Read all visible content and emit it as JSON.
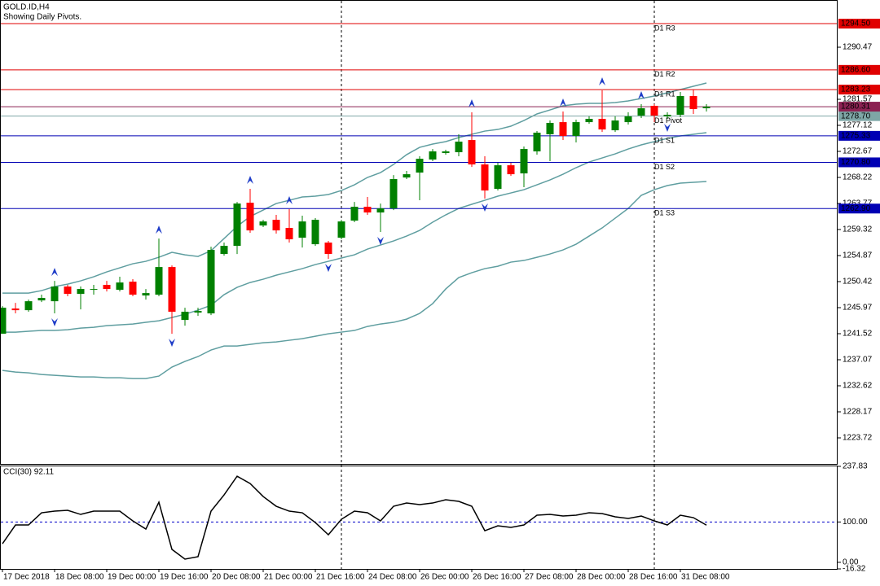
{
  "chart_data": [
    {
      "type": "candlestick",
      "title": "GOLD.ID,H4",
      "subtitle": "Showing Daily Pivots.",
      "categories": [
        "17 Dec 2018",
        null,
        null,
        null,
        "18 Dec 08:00",
        null,
        null,
        null,
        "19 Dec 00:00",
        null,
        null,
        null,
        "19 Dec 16:00",
        null,
        null,
        null,
        "20 Dec 08:00",
        null,
        null,
        null,
        "21 Dec 00:00",
        null,
        null,
        null,
        "21 Dec 16:00",
        null,
        null,
        null,
        "24 Dec 08:00",
        null,
        null,
        null,
        "26 Dec 00:00",
        null,
        null,
        null,
        "26 Dec 16:00",
        null,
        null,
        null,
        "27 Dec 08:00",
        null,
        null,
        null,
        "28 Dec 00:00",
        null,
        null,
        null,
        "28 Dec 16:00",
        null,
        null,
        null,
        "31 Dec 08:00",
        null,
        null
      ],
      "open": [
        1241.51,
        1245.82,
        1245.54,
        1247.21,
        1247.07,
        1249.58,
        1248.32,
        1249.02,
        1249.86,
        1249.02,
        1250.41,
        1248.05,
        1248.19,
        1252.91,
        1243.87,
        1245.13,
        1244.99,
        1255.14,
        1256.53,
        1263.9,
        1260.01,
        1260.98,
        1259.59,
        1257.92,
        1256.81,
        1257.09,
        1257.92,
        1260.84,
        1263.21,
        1262.23,
        1262.93,
        1268.21,
        1269.05,
        1271.28,
        1272.39,
        1272.53,
        1274.61,
        1270.44,
        1266.27,
        1270.3,
        1268.91,
        1272.67,
        1275.59,
        1277.67,
        1275.31,
        1277.67,
        1278.23,
        1276.28,
        1277.67,
        1278.79,
        1280.46,
        1278.65,
        1278.93,
        1282.13,
        1280.04
      ],
      "high": [
        1246.24,
        1246.79,
        1247.35,
        1248.19,
        1250.55,
        1249.86,
        1249.58,
        1249.86,
        1250.55,
        1251.25,
        1250.83,
        1249.16,
        1257.78,
        1253.19,
        1245.96,
        1245.96,
        1256.39,
        1257.09,
        1264.04,
        1266.27,
        1260.98,
        1261.82,
        1262.79,
        1261.68,
        1261.26,
        1257.37,
        1260.98,
        1264.04,
        1264.88,
        1263.76,
        1268.63,
        1269.33,
        1271.83,
        1273.08,
        1272.95,
        1275.59,
        1279.34,
        1271.83,
        1270.72,
        1270.72,
        1273.5,
        1276.14,
        1277.95,
        1279.48,
        1278.09,
        1278.65,
        1283.1,
        1278.65,
        1279.34,
        1280.73,
        1280.73,
        1279.34,
        1282.82,
        1283.24,
        1280.73
      ],
      "low": [
        1241.51,
        1244.99,
        1245.27,
        1246.93,
        1244.99,
        1247.91,
        1245.68,
        1248.19,
        1248.74,
        1248.74,
        1247.91,
        1247.35,
        1247.91,
        1241.51,
        1242.9,
        1244.57,
        1244.71,
        1254.86,
        1255.14,
        1258.76,
        1259.73,
        1258.62,
        1257.09,
        1256.25,
        1256.53,
        1254.3,
        1257.65,
        1260.57,
        1261.82,
        1258.9,
        1262.65,
        1267.94,
        1264.32,
        1271.0,
        1272.11,
        1271.83,
        1270.02,
        1264.6,
        1265.99,
        1268.49,
        1266.55,
        1272.11,
        1271.0,
        1274.61,
        1274.2,
        1277.4,
        1276.0,
        1276.0,
        1277.26,
        1278.37,
        1277.67,
        1278.23,
        1278.51,
        1279.07,
        1279.48
      ],
      "close": [
        1245.96,
        1245.54,
        1247.07,
        1247.63,
        1249.58,
        1248.32,
        1249.16,
        1249.16,
        1249.16,
        1250.27,
        1248.19,
        1248.46,
        1252.91,
        1245.27,
        1245.27,
        1245.4,
        1255.84,
        1256.53,
        1263.76,
        1259.17,
        1260.7,
        1259.17,
        1257.65,
        1260.7,
        1260.98,
        1255.14,
        1260.7,
        1263.21,
        1262.23,
        1262.93,
        1267.94,
        1268.77,
        1271.41,
        1272.67,
        1272.67,
        1274.34,
        1270.44,
        1265.99,
        1270.3,
        1268.77,
        1273.08,
        1275.87,
        1277.54,
        1275.31,
        1277.67,
        1278.23,
        1276.42,
        1277.95,
        1278.65,
        1280.04,
        1278.79,
        1278.93,
        1282.13,
        1279.9,
        1280.31
      ],
      "up_color": "#008000",
      "down_color": "#ff0000",
      "ylim": [
        1219.27,
        1298.26
      ],
      "yticks": [
        1223.72,
        1228.17,
        1232.62,
        1237.07,
        1241.52,
        1245.97,
        1250.42,
        1254.87,
        1259.32,
        1263.77,
        1268.22,
        1272.67,
        1277.12,
        1281.57,
        1290.47
      ],
      "overlays": [
        {
          "color": "#5f9ea0",
          "values": [
            1248.46,
            1248.46,
            1248.46,
            1248.88,
            1249.58,
            1249.99,
            1250.55,
            1251.25,
            1252.08,
            1252.78,
            1253.47,
            1253.89,
            1254.58,
            1255.42,
            1255.0,
            1254.72,
            1255.7,
            1257.78,
            1259.87,
            1261.54,
            1262.65,
            1263.76,
            1264.32,
            1264.88,
            1265.02,
            1265.3,
            1265.99,
            1266.96,
            1268.22,
            1269.05,
            1270.44,
            1272.11,
            1273.36,
            1273.92,
            1274.34,
            1275.03,
            1275.59,
            1276.14,
            1276.42,
            1276.98,
            1277.95,
            1279.07,
            1279.76,
            1280.46,
            1280.74,
            1280.87,
            1280.87,
            1281.01,
            1281.29,
            1281.71,
            1282.13,
            1282.68,
            1283.24,
            1283.8,
            1284.35
          ]
        },
        {
          "color": "#5f9ea0",
          "values": [
            1241.79,
            1241.79,
            1241.93,
            1242.07,
            1242.07,
            1242.2,
            1242.48,
            1242.62,
            1242.9,
            1243.04,
            1243.18,
            1243.46,
            1243.73,
            1244.29,
            1244.85,
            1245.54,
            1246.38,
            1248.19,
            1249.44,
            1250.27,
            1250.83,
            1251.52,
            1252.08,
            1252.64,
            1253.33,
            1253.89,
            1254.45,
            1255.0,
            1255.98,
            1256.67,
            1257.37,
            1258.2,
            1259.17,
            1260.57,
            1261.82,
            1262.93,
            1263.63,
            1264.32,
            1265.02,
            1265.57,
            1266.13,
            1266.96,
            1267.8,
            1268.77,
            1269.89,
            1270.86,
            1271.55,
            1272.25,
            1273.08,
            1273.78,
            1274.34,
            1274.89,
            1275.31,
            1275.59,
            1275.87
          ]
        },
        {
          "color": "#5f9ea0",
          "values": [
            1235.25,
            1234.97,
            1234.83,
            1234.55,
            1234.41,
            1234.28,
            1234.14,
            1234.14,
            1234.0,
            1234.0,
            1233.86,
            1233.86,
            1234.28,
            1235.81,
            1236.78,
            1237.61,
            1238.73,
            1239.42,
            1239.42,
            1239.7,
            1239.98,
            1240.12,
            1240.4,
            1240.67,
            1241.09,
            1241.51,
            1241.79,
            1242.07,
            1242.76,
            1243.18,
            1243.46,
            1244.01,
            1244.99,
            1246.66,
            1249.16,
            1251.11,
            1251.94,
            1252.64,
            1253.05,
            1253.75,
            1254.03,
            1254.58,
            1255.14,
            1255.84,
            1256.81,
            1258.2,
            1259.59,
            1261.26,
            1262.93,
            1265.16,
            1266.13,
            1266.83,
            1267.24,
            1267.38,
            1267.52
          ]
        }
      ],
      "fractals_up": {
        "color": "#1e3cc8",
        "values": [
          null,
          null,
          null,
          null,
          1250.55,
          null,
          null,
          null,
          null,
          null,
          null,
          null,
          1257.78,
          null,
          null,
          null,
          null,
          null,
          null,
          1266.27,
          null,
          null,
          1262.79,
          null,
          null,
          null,
          null,
          null,
          null,
          null,
          null,
          null,
          null,
          null,
          null,
          null,
          1279.34,
          null,
          null,
          null,
          null,
          null,
          null,
          1279.48,
          null,
          null,
          1283.1,
          null,
          null,
          1280.73,
          null,
          null,
          null,
          null,
          null
        ]
      },
      "fractals_down": {
        "color": "#1e3cc8",
        "values": [
          null,
          null,
          null,
          null,
          1244.99,
          null,
          null,
          null,
          null,
          null,
          null,
          null,
          null,
          1241.51,
          null,
          null,
          null,
          null,
          null,
          null,
          null,
          null,
          null,
          null,
          null,
          1254.3,
          null,
          null,
          null,
          1258.9,
          null,
          null,
          null,
          null,
          null,
          null,
          null,
          1264.6,
          null,
          null,
          null,
          null,
          null,
          null,
          null,
          null,
          null,
          null,
          null,
          null,
          null,
          1278.23,
          null,
          null,
          null
        ]
      },
      "levels": [
        {
          "name": "D1 R3",
          "price": {
            "value": 1294.5,
            "label": "1294.50"
          },
          "color": "#e00000"
        },
        {
          "name": "D1 R2",
          "price": {
            "value": 1286.6,
            "label": "1286.60"
          },
          "color": "#e00000"
        },
        {
          "name": "D1 R1",
          "price": 1283.23,
          "color": "#e00000"
        },
        {
          "name": "D1 Pivot",
          "price": {
            "value": 1278.7,
            "label": "1278.70"
          },
          "color": "#7ea6a6"
        },
        {
          "name": "D1 S1",
          "price": 1275.33,
          "color": "#0000b4"
        },
        {
          "name": "D1 S2",
          "price": {
            "value": 1270.8,
            "label": "1270.80"
          },
          "color": "#0000b4"
        },
        {
          "name": "D1 S3",
          "price": {
            "value": 1262.9,
            "label": "1262.90"
          },
          "color": "#0000b4"
        }
      ],
      "bid": {
        "price": 1280.31,
        "color": "#8b2252"
      }
    },
    {
      "type": "line",
      "title": "CCI(30) 92.11",
      "values": [
        46.18,
        92.55,
        92.55,
        122.79,
        126.82,
        128.84,
        118.76,
        126.82,
        126.82,
        126.82,
        102.63,
        82.47,
        149.0,
        32.07,
        7.87,
        13.92,
        126.82,
        167.15,
        213.52,
        195.37,
        163.11,
        138.92,
        126.82,
        122.79,
        98.6,
        68.36,
        106.66,
        126.82,
        122.79,
        102.63,
        138.92,
        146.98,
        142.95,
        146.98,
        155.05,
        151.02,
        138.92,
        78.44,
        90.53,
        86.5,
        92.55,
        116.74,
        118.76,
        114.73,
        116.74,
        122.79,
        120.77,
        112.71,
        108.68,
        114.73,
        102.63,
        92.55,
        116.74,
        110.69,
        92.11
      ],
      "color": "#000000",
      "ylim": [
        -16.32,
        237.83
      ],
      "yticks": [
        237.83,
        {
          "value": 100,
          "label": "100.00"
        },
        {
          "value": 0,
          "label": "0.00"
        },
        -16.32
      ],
      "levels": [
        100
      ],
      "level_color": "#0000c8"
    }
  ]
}
